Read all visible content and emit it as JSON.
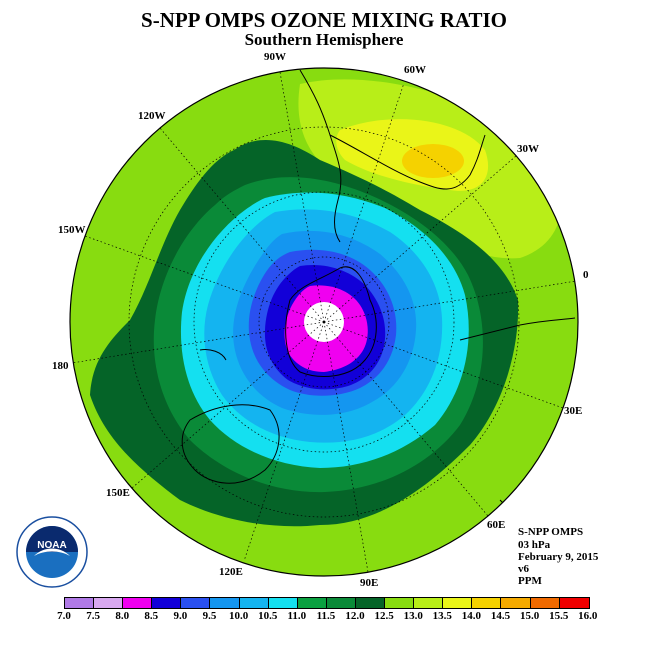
{
  "title": "S-NPP OMPS OZONE MIXING RATIO",
  "subtitle": "Southern Hemisphere",
  "longitude_labels": {
    "w90": "90W",
    "w60": "60W",
    "w30": "30W",
    "e0": "0",
    "w120": "120W",
    "w150": "150W",
    "d180": "180",
    "e30": "30E",
    "e60": "60E",
    "e90": "90E",
    "e120": "120E",
    "e150": "150E"
  },
  "info": {
    "line1": "S-NPP OMPS",
    "line2": "03 hPa",
    "line3": "February 9, 2015",
    "line4": "v6",
    "line5": "PPM"
  },
  "logo_text": "NOAA",
  "legend": {
    "ticks": [
      "7.0",
      "7.5",
      "8.0",
      "8.5",
      "9.0",
      "9.5",
      "10.0",
      "10.5",
      "11.0",
      "11.5",
      "12.0",
      "12.5",
      "13.0",
      "13.5",
      "14.0",
      "14.5",
      "15.0",
      "15.5",
      "16.0"
    ],
    "colors": [
      "#b07ae6",
      "#d8a8f0",
      "#f000f0",
      "#1200d8",
      "#2a50f0",
      "#1496f0",
      "#14b4f0",
      "#14e0f0",
      "#0aa040",
      "#0a8a38",
      "#056428",
      "#88dc10",
      "#b8ee18",
      "#eaf518",
      "#f5d200",
      "#f5aa00",
      "#f06a00",
      "#f00000",
      "#8b4a2a"
    ]
  },
  "chart_data": {
    "type": "heatmap",
    "title": "S-NPP OMPS OZONE MIXING RATIO",
    "subtitle": "Southern Hemisphere",
    "projection": "polar stereographic, south pole centered",
    "pressure_level": "03 hPa",
    "date": "February 9, 2015",
    "units": "PPM",
    "color_levels": [
      7.0,
      7.5,
      8.0,
      8.5,
      9.0,
      9.5,
      10.0,
      10.5,
      11.0,
      11.5,
      12.0,
      12.5,
      13.0,
      13.5,
      14.0,
      14.5,
      15.0,
      15.5,
      16.0
    ],
    "field_summary": "Minimum below 8.0 ppm centered near the South Pole, increasing outward to 11.5-12.0 ppm at mid latitudes, 12.0-12.5 ppm over most of the hemisphere edge, and a local maximum of about 13.5-14.0 ppm over the South Atlantic near 30W-45W."
  }
}
